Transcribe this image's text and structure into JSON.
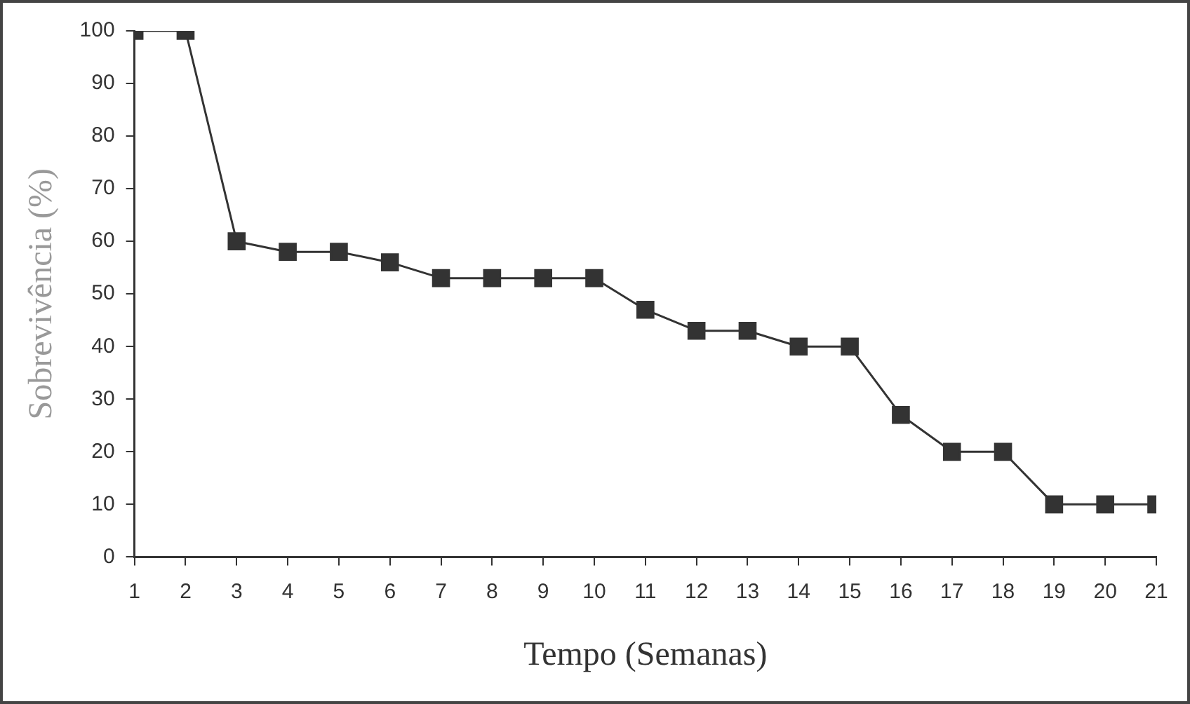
{
  "chart_data": {
    "type": "line",
    "xlabel": "Tempo (Semanas)",
    "ylabel": "Sobrevivência (%)",
    "x": [
      1,
      2,
      3,
      4,
      5,
      6,
      7,
      8,
      9,
      10,
      11,
      12,
      13,
      14,
      15,
      16,
      17,
      18,
      19,
      20,
      21
    ],
    "series": [
      {
        "color": "#333333",
        "values": [
          100,
          100,
          60,
          58,
          58,
          56,
          53,
          53,
          53,
          53,
          47,
          43,
          43,
          40,
          40,
          27,
          20,
          20,
          10,
          10,
          10
        ]
      }
    ],
    "xlim": [
      1,
      21
    ],
    "xticks": [
      1,
      2,
      3,
      4,
      5,
      6,
      7,
      8,
      9,
      10,
      11,
      12,
      13,
      14,
      15,
      16,
      17,
      18,
      19,
      20,
      21
    ],
    "ylim": [
      0,
      100
    ],
    "yticks": [
      0,
      10,
      20,
      30,
      40,
      50,
      60,
      70,
      80,
      90,
      100
    ],
    "grid": false,
    "legend": false,
    "marker": "square",
    "line_style": "solid"
  }
}
